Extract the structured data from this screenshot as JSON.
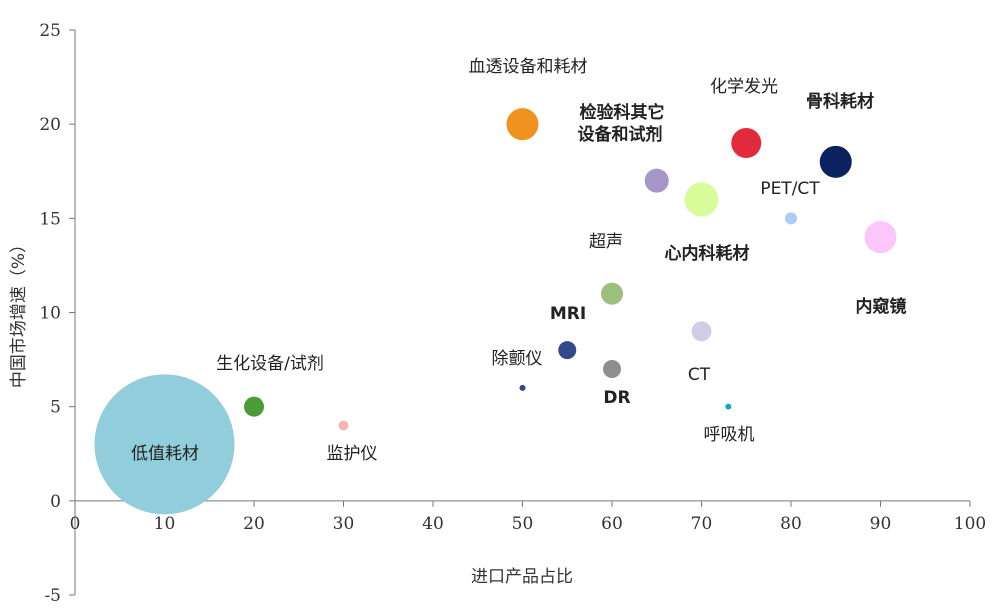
{
  "chart_data": {
    "type": "scatter",
    "xlabel": "进口产品占比",
    "ylabel": "中国市场增速（%）",
    "xlim": [
      0,
      100
    ],
    "ylim": [
      -5,
      25
    ],
    "x_ticks": [
      "0",
      "10",
      "20",
      "30",
      "40",
      "50",
      "60",
      "70",
      "80",
      "90",
      "100"
    ],
    "y_ticks": [
      "-5",
      "0",
      "5",
      "10",
      "15",
      "20",
      "25"
    ],
    "grid": false,
    "legend": "none",
    "points": [
      {
        "name": "低值耗材",
        "x": 10,
        "y": 3,
        "size": 70,
        "color": "#92cddc"
      },
      {
        "name": "生化设备/试剂",
        "x": 20,
        "y": 5,
        "size": 10,
        "color": "#4a9c34"
      },
      {
        "name": "监护仪",
        "x": 30,
        "y": 4,
        "size": 5,
        "color": "#f4b6b0"
      },
      {
        "name": "血透设备和耗材",
        "x": 50,
        "y": 20,
        "size": 16,
        "color": "#f0931e"
      },
      {
        "name": "除颤仪",
        "x": 50,
        "y": 6,
        "size": 3,
        "color": "#2f4a85"
      },
      {
        "name": "MRI",
        "x": 55,
        "y": 8,
        "size": 9,
        "color": "#34498a"
      },
      {
        "name": "超声",
        "x": 60,
        "y": 11,
        "size": 11,
        "color": "#9cbf7c"
      },
      {
        "name": "DR",
        "x": 60,
        "y": 7,
        "size": 9,
        "color": "#8e8e8e"
      },
      {
        "name": "检验科其它设备和试剂",
        "x": 65,
        "y": 17,
        "size": 12,
        "color": "#a696c8"
      },
      {
        "name": "心内科耗材",
        "x": 70,
        "y": 16,
        "size": 17,
        "color": "#d7fc9a"
      },
      {
        "name": "CT",
        "x": 70,
        "y": 9,
        "size": 10,
        "color": "#d3cce6"
      },
      {
        "name": "呼吸机",
        "x": 73,
        "y": 5,
        "size": 3,
        "color": "#1aa5bf"
      },
      {
        "name": "化学发光",
        "x": 75,
        "y": 19,
        "size": 15,
        "color": "#e12b3c"
      },
      {
        "name": "PET/CT",
        "x": 80,
        "y": 15,
        "size": 6,
        "color": "#a9cdf5"
      },
      {
        "name": "骨科耗材",
        "x": 85,
        "y": 18,
        "size": 16,
        "color": "#0b225e"
      },
      {
        "name": "内窥镜",
        "x": 90,
        "y": 14,
        "size": 16,
        "color": "#fcc6fb"
      }
    ]
  },
  "labels": [
    {
      "text": "低值耗材",
      "bold": false
    },
    {
      "text": "生化设备/试剂",
      "bold": false
    },
    {
      "text": "监护仪",
      "bold": false
    },
    {
      "text": "血透设备和耗材",
      "bold": false
    },
    {
      "text": "除颤仪",
      "bold": false
    },
    {
      "text": "MRI",
      "bold": true
    },
    {
      "text": "超声",
      "bold": false
    },
    {
      "text": "DR",
      "bold": true
    },
    {
      "text": "检验科其它",
      "bold": true
    },
    {
      "text": "设备和试剂",
      "bold": true
    },
    {
      "text": "心内科耗材",
      "bold": true
    },
    {
      "text": "CT",
      "bold": false
    },
    {
      "text": "呼吸机",
      "bold": false
    },
    {
      "text": "化学发光",
      "bold": false
    },
    {
      "text": "PET/CT",
      "bold": false
    },
    {
      "text": "骨科耗材",
      "bold": true
    },
    {
      "text": "内窥镜",
      "bold": true
    }
  ]
}
